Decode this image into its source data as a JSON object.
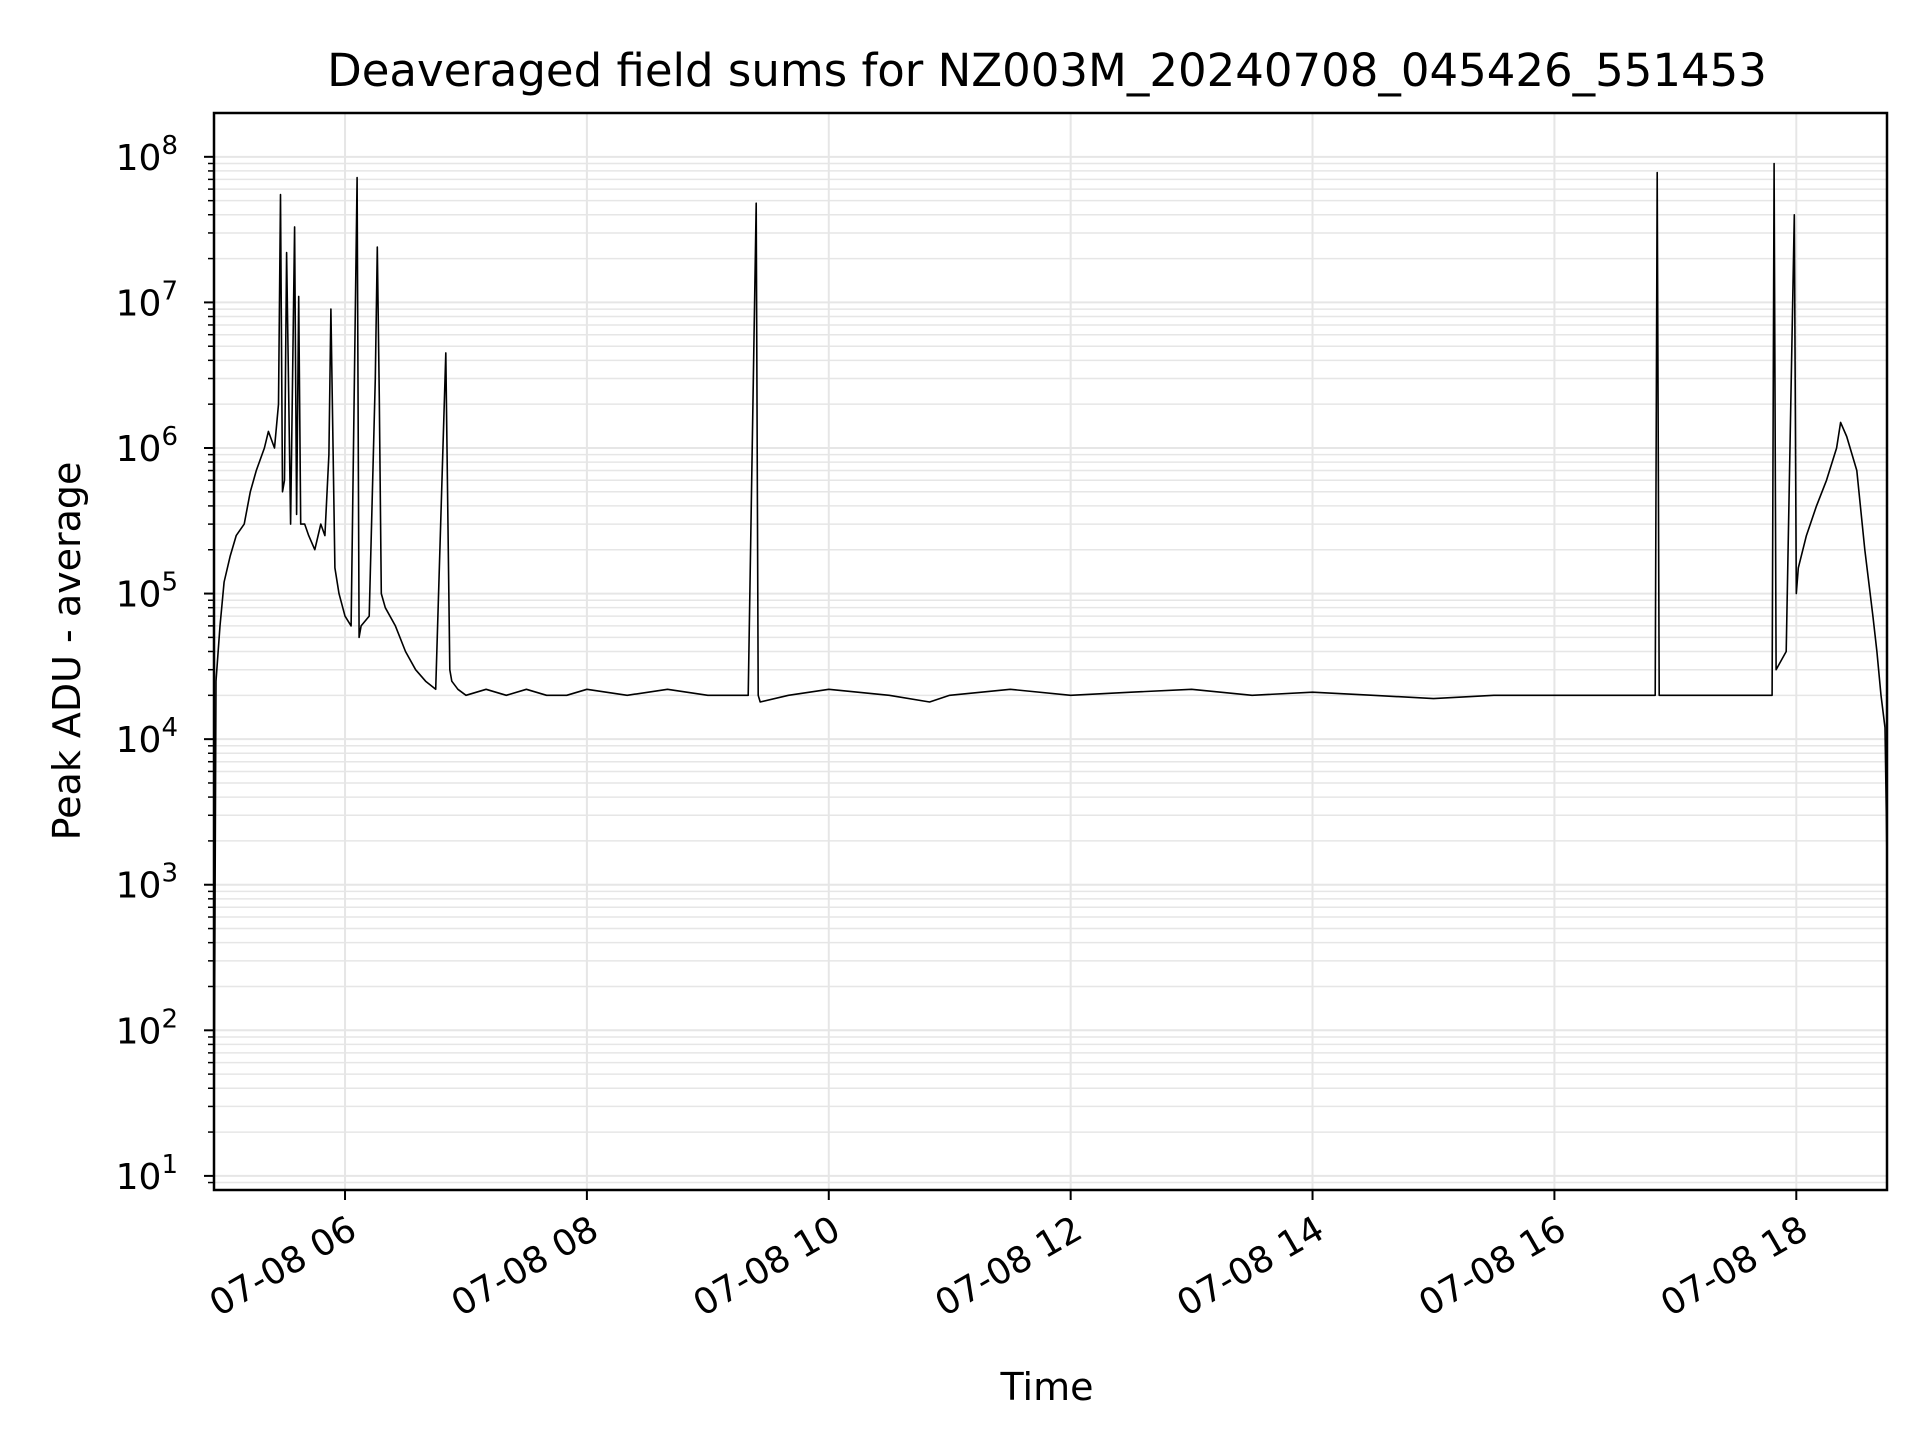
{
  "chart_data": {
    "type": "line",
    "title": "Deaveraged field sums for NZ003M_20240708_045426_551453",
    "xlabel": "Time",
    "ylabel": "Peak ADU - average",
    "yscale": "log",
    "grid": true,
    "line_color": "#000000",
    "grid_color": "#e6e6e6",
    "xlim": [
      "2024-07-08 04:55",
      "2024-07-08 18:45"
    ],
    "ylim": [
      8,
      200000000
    ],
    "x_ticks": [
      {
        "value": "2024-07-08 06:00",
        "label": "07-08 06"
      },
      {
        "value": "2024-07-08 08:00",
        "label": "07-08 08"
      },
      {
        "value": "2024-07-08 10:00",
        "label": "07-08 10"
      },
      {
        "value": "2024-07-08 12:00",
        "label": "07-08 12"
      },
      {
        "value": "2024-07-08 14:00",
        "label": "07-08 14"
      },
      {
        "value": "2024-07-08 16:00",
        "label": "07-08 16"
      },
      {
        "value": "2024-07-08 18:00",
        "label": "07-08 18"
      }
    ],
    "y_ticks": [
      {
        "value": 10,
        "base": "10",
        "exp": "1"
      },
      {
        "value": 100,
        "base": "10",
        "exp": "2"
      },
      {
        "value": 1000,
        "base": "10",
        "exp": "3"
      },
      {
        "value": 10000,
        "base": "10",
        "exp": "4"
      },
      {
        "value": 100000,
        "base": "10",
        "exp": "5"
      },
      {
        "value": 1000000,
        "base": "10",
        "exp": "6"
      },
      {
        "value": 10000000,
        "base": "10",
        "exp": "7"
      },
      {
        "value": 100000000,
        "base": "10",
        "exp": "8"
      }
    ],
    "series": [
      {
        "x": [
          "2024-07-08 04:55",
          "2024-07-08 04:56",
          "2024-07-08 04:58",
          "2024-07-08 05:00",
          "2024-07-08 05:03",
          "2024-07-08 05:06",
          "2024-07-08 05:10",
          "2024-07-08 05:13",
          "2024-07-08 05:16",
          "2024-07-08 05:20",
          "2024-07-08 05:22",
          "2024-07-08 05:25",
          "2024-07-08 05:27",
          "2024-07-08 05:28",
          "2024-07-08 05:29",
          "2024-07-08 05:30",
          "2024-07-08 05:31",
          "2024-07-08 05:33",
          "2024-07-08 05:35",
          "2024-07-08 05:36",
          "2024-07-08 05:37",
          "2024-07-08 05:38",
          "2024-07-08 05:40",
          "2024-07-08 05:42",
          "2024-07-08 05:45",
          "2024-07-08 05:48",
          "2024-07-08 05:50",
          "2024-07-08 05:52",
          "2024-07-08 05:53",
          "2024-07-08 05:55",
          "2024-07-08 05:57",
          "2024-07-08 06:00",
          "2024-07-08 06:03",
          "2024-07-08 06:06",
          "2024-07-08 06:07",
          "2024-07-08 06:08",
          "2024-07-08 06:12",
          "2024-07-08 06:15",
          "2024-07-08 06:16",
          "2024-07-08 06:17",
          "2024-07-08 06:18",
          "2024-07-08 06:20",
          "2024-07-08 06:25",
          "2024-07-08 06:30",
          "2024-07-08 06:35",
          "2024-07-08 06:40",
          "2024-07-08 06:45",
          "2024-07-08 06:50",
          "2024-07-08 06:52",
          "2024-07-08 06:53",
          "2024-07-08 06:56",
          "2024-07-08 07:00",
          "2024-07-08 07:10",
          "2024-07-08 07:20",
          "2024-07-08 07:30",
          "2024-07-08 07:40",
          "2024-07-08 07:50",
          "2024-07-08 08:00",
          "2024-07-08 08:20",
          "2024-07-08 08:40",
          "2024-07-08 09:00",
          "2024-07-08 09:20",
          "2024-07-08 09:24",
          "2024-07-08 09:25",
          "2024-07-08 09:26",
          "2024-07-08 09:40",
          "2024-07-08 10:00",
          "2024-07-08 10:30",
          "2024-07-08 10:50",
          "2024-07-08 11:00",
          "2024-07-08 11:30",
          "2024-07-08 12:00",
          "2024-07-08 12:30",
          "2024-07-08 13:00",
          "2024-07-08 13:30",
          "2024-07-08 14:00",
          "2024-07-08 14:30",
          "2024-07-08 15:00",
          "2024-07-08 15:30",
          "2024-07-08 16:00",
          "2024-07-08 16:30",
          "2024-07-08 16:50",
          "2024-07-08 16:51",
          "2024-07-08 16:52",
          "2024-07-08 17:10",
          "2024-07-08 17:30",
          "2024-07-08 17:45",
          "2024-07-08 17:48",
          "2024-07-08 17:49",
          "2024-07-08 17:50",
          "2024-07-08 17:55",
          "2024-07-08 17:59",
          "2024-07-08 18:00",
          "2024-07-08 18:01",
          "2024-07-08 18:05",
          "2024-07-08 18:10",
          "2024-07-08 18:15",
          "2024-07-08 18:20",
          "2024-07-08 18:22",
          "2024-07-08 18:25",
          "2024-07-08 18:30",
          "2024-07-08 18:34",
          "2024-07-08 18:38",
          "2024-07-08 18:40",
          "2024-07-08 18:42",
          "2024-07-08 18:44",
          "2024-07-08 18:45"
        ],
        "y": [
          18,
          25000,
          60000,
          120000,
          180000,
          250000,
          300000,
          500000,
          700000,
          1000000,
          1300000,
          1000000,
          2000000,
          55000000,
          500000,
          600000,
          22000000,
          300000,
          33000000,
          350000,
          11000000,
          300000,
          300000,
          250000,
          200000,
          300000,
          250000,
          900000,
          9000000,
          150000,
          100000,
          70000,
          60000,
          72000000,
          50000,
          60000,
          70000,
          3000000,
          24000000,
          2200000,
          100000,
          80000,
          60000,
          40000,
          30000,
          25000,
          22000,
          4500000,
          30000,
          25000,
          22000,
          20000,
          22000,
          20000,
          22000,
          20000,
          20000,
          22000,
          20000,
          22000,
          20000,
          20000,
          48000000,
          20000,
          18000,
          20000,
          22000,
          20000,
          18000,
          20000,
          22000,
          20000,
          21000,
          22000,
          20000,
          21000,
          20000,
          19000,
          20000,
          20000,
          20000,
          20000,
          78000000,
          20000,
          20000,
          20000,
          20000,
          20000,
          90000000,
          30000,
          40000,
          40000000,
          100000,
          150000,
          250000,
          400000,
          600000,
          1000000,
          1500000,
          1200000,
          700000,
          200000,
          70000,
          40000,
          20000,
          12000,
          1500
        ]
      }
    ]
  }
}
